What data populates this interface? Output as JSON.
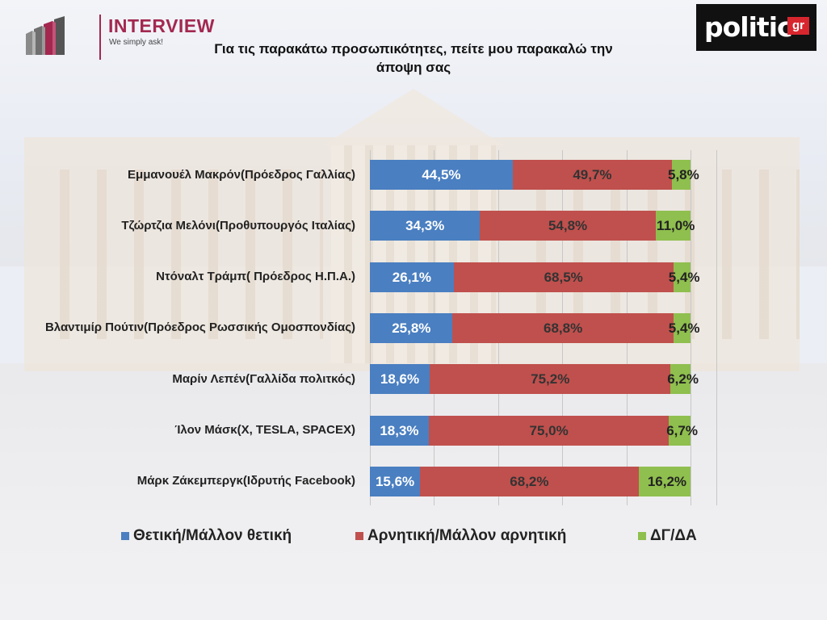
{
  "logos": {
    "interview": {
      "name": "INTERVIEW",
      "tagline": "We simply ask!"
    },
    "politic": {
      "word": "politic",
      "suffix": "gr"
    }
  },
  "colors": {
    "positive": "#4a7fc1",
    "negative": "#c0504d",
    "dk": "#8fbf4e"
  },
  "chart_data": {
    "type": "bar",
    "stacked": true,
    "orientation": "horizontal",
    "percent": true,
    "title": "Για τις παρακάτω προσωπικότητες, πείτε μου παρακαλώ την άποψη σας",
    "xlim": [
      0,
      100
    ],
    "grid": true,
    "legend_position": "bottom",
    "categories": [
      "Εμμανουέλ Μακρόν(Πρόεδρος Γαλλίας)",
      "Τζώρτζια Μελόνι(Προθυπουργός Ιταλίας)",
      "Ντόναλτ Τράμπ( Πρόεδρος Η.Π.Α.)",
      "Βλαντιμίρ Πούτιν(Πρόεδρος Ρωσσικής Ομοσπονδίας)",
      "Μαρίν Λεπέν(Γαλλίδα πολιτκός)",
      "Ίλον Μάσκ(Χ, TESLA, SPACEX)",
      "Μάρκ Ζάκεμπεργκ(Ιδρυτής Facebook)"
    ],
    "series": [
      {
        "name": "Θετική/Μάλλον θετική",
        "values": [
          44.5,
          34.3,
          26.1,
          25.8,
          18.6,
          18.3,
          15.6
        ],
        "labels": [
          "44,5%",
          "34,3%",
          "26,1%",
          "25,8%",
          "18,6%",
          "18,3%",
          "15,6%"
        ]
      },
      {
        "name": "Αρνητική/Μάλλον αρνητική",
        "values": [
          49.7,
          54.8,
          68.5,
          68.8,
          75.2,
          75.0,
          68.2
        ],
        "labels": [
          "49,7%",
          "54,8%",
          "68,5%",
          "68,8%",
          "75,2%",
          "75,0%",
          "68,2%"
        ]
      },
      {
        "name": "ΔΓ/ΔΑ",
        "values": [
          5.8,
          11.0,
          5.4,
          5.4,
          6.2,
          6.7,
          16.2
        ],
        "labels": [
          "5,8%",
          "11,0%",
          "5,4%",
          "5,4%",
          "6,2%",
          "6,7%",
          "16,2%"
        ]
      }
    ]
  }
}
